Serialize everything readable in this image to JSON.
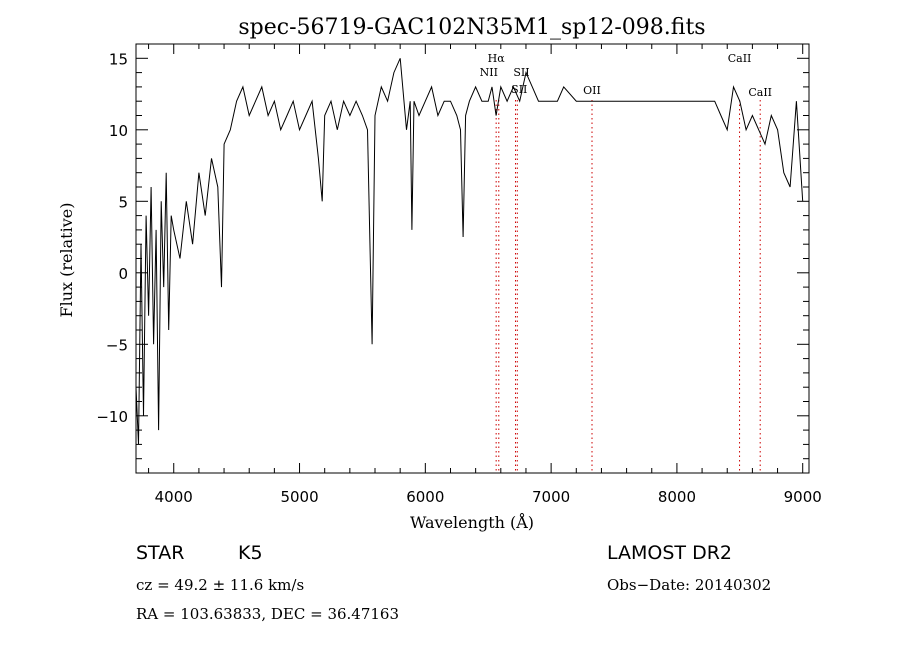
{
  "chart_data": {
    "type": "line",
    "title": "spec-56719-GAC102N35M1_sp12-098.fits",
    "xlabel": "Wavelength (Å)",
    "ylabel": "Flux (relative)",
    "xlim": [
      3700,
      9050
    ],
    "ylim": [
      -14,
      16
    ],
    "xticks": [
      4000,
      5000,
      6000,
      7000,
      8000,
      9000
    ],
    "xtick_labels": [
      "4000",
      "5000",
      "6000",
      "7000",
      "8000",
      "9000"
    ],
    "yticks": [
      15,
      10,
      5,
      0,
      -5,
      -10
    ],
    "ytick_labels": [
      "15",
      "10",
      "5",
      "0",
      "−5",
      "−10"
    ],
    "grid": false,
    "line_color": "#000000",
    "marker_color": "#cc0000",
    "series": [
      {
        "x": [
          3700,
          3720,
          3740,
          3760,
          3780,
          3800,
          3820,
          3840,
          3860,
          3880,
          3900,
          3920,
          3940,
          3960,
          3980,
          4000,
          4050,
          4100,
          4150,
          4200,
          4250,
          4300,
          4350,
          4380,
          4400,
          4450,
          4500,
          4550,
          4600,
          4650,
          4700,
          4750,
          4800,
          4850,
          4900,
          4950,
          5000,
          5050,
          5100,
          5150,
          5180,
          5200,
          5250,
          5300,
          5350,
          5400,
          5450,
          5500,
          5540,
          5577,
          5600,
          5650,
          5700,
          5750,
          5800,
          5850,
          5880,
          5893,
          5910,
          5950,
          6000,
          6050,
          6100,
          6150,
          6200,
          6250,
          6280,
          6300,
          6320,
          6350,
          6400,
          6450,
          6500,
          6530,
          6563,
          6600,
          6650,
          6700,
          6750,
          6800,
          6850,
          6900,
          6950,
          7000,
          7050,
          7100,
          7200,
          7300,
          7400,
          7500,
          7600,
          7700,
          7800,
          7900,
          8000,
          8100,
          8200,
          8300,
          8350,
          8400,
          8450,
          8500,
          8550,
          8600,
          8650,
          8700,
          8750,
          8800,
          8850,
          8900,
          8950,
          9000
        ],
        "y": [
          -8,
          -12,
          2,
          -10,
          4,
          -3,
          6,
          -5,
          3,
          -11,
          5,
          -1,
          7,
          -4,
          4,
          3,
          1,
          5,
          2,
          7,
          4,
          8,
          6,
          -1,
          9,
          10,
          12,
          13,
          11,
          12,
          13,
          11,
          12,
          10,
          11,
          12,
          10,
          11,
          12,
          8,
          5,
          11,
          12,
          10,
          12,
          11,
          12,
          11,
          10,
          -5,
          11,
          13,
          12,
          14,
          15,
          10,
          12,
          3,
          12,
          11,
          12,
          13,
          11,
          12,
          12,
          11,
          10,
          2.5,
          11,
          12,
          13,
          12,
          12,
          13,
          11,
          13,
          12,
          13,
          12,
          14,
          13,
          12,
          12,
          12,
          12,
          13,
          12,
          12,
          12,
          12,
          12,
          12,
          12,
          12,
          12,
          12,
          12,
          12,
          11,
          10,
          13,
          12,
          10,
          11,
          10,
          9,
          11,
          10,
          7,
          6,
          12,
          5
        ]
      }
    ],
    "lines": [
      {
        "label": "Hα",
        "x": 6563
      },
      {
        "label": "NII",
        "x": 6584
      },
      {
        "label": "SII",
        "x": 6717
      },
      {
        "label": "SII",
        "x": 6731
      },
      {
        "label": "OII",
        "x": 7325
      },
      {
        "label": "CaII",
        "x": 8498
      },
      {
        "label": "CaII",
        "x": 8662
      }
    ]
  },
  "info": {
    "object_type": "STAR",
    "subclass": "K5",
    "survey": "LAMOST DR2",
    "cz": "cz = 49.2 ± 11.6 km/s",
    "obs_date": "Obs−Date: 20140302",
    "radec": "RA = 103.63833, DEC =  36.47163"
  }
}
